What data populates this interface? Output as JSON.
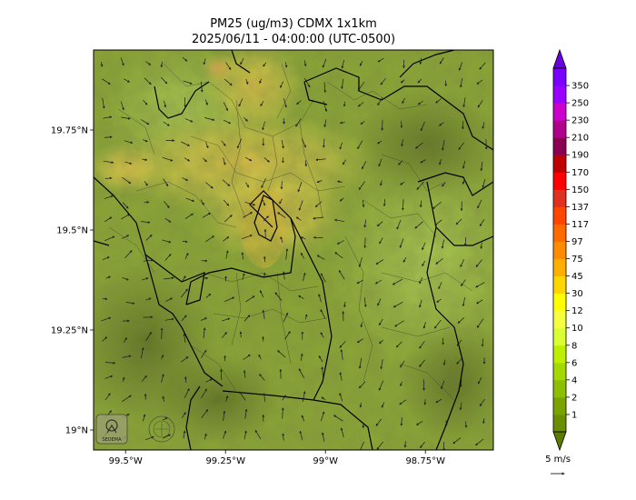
{
  "title": {
    "line1": "PM25 (ug/m3) CDMX 1x1km",
    "line2": "2025/06/11 - 04:00:00 (UTC-0500)"
  },
  "map": {
    "lon_range": [
      -99.58,
      -98.58
    ],
    "lat_range": [
      18.95,
      19.95
    ],
    "lat_ticks": [
      {
        "value": 19.75,
        "label": "19.75°N"
      },
      {
        "value": 19.5,
        "label": "19.5°N"
      },
      {
        "value": 19.25,
        "label": "19.25°N"
      },
      {
        "value": 19.0,
        "label": "19°N"
      }
    ],
    "lon_ticks": [
      {
        "value": -99.5,
        "label": "99.5°W"
      },
      {
        "value": -99.25,
        "label": "99.25°W"
      },
      {
        "value": -99.0,
        "label": "99°W"
      },
      {
        "value": -98.75,
        "label": "98.75°W"
      }
    ],
    "logo_text": "SEDEMA"
  },
  "colorbar": {
    "levels": [
      "1",
      "2",
      "4",
      "6",
      "8",
      "10",
      "12",
      "30",
      "45",
      "75",
      "97",
      "117",
      "137",
      "150",
      "170",
      "190",
      "210",
      "230",
      "250",
      "350"
    ],
    "colors": [
      "#6b8e00",
      "#7ba300",
      "#8cbf00",
      "#a3d900",
      "#bfef00",
      "#d9ff33",
      "#f5ff40",
      "#ffff00",
      "#ffd700",
      "#ffb000",
      "#ff8c00",
      "#ff6a00",
      "#ff4500",
      "#e03020",
      "#ff0000",
      "#c00000",
      "#8b0050",
      "#b0008b",
      "#cc00cc",
      "#9900ff",
      "#7a00ff"
    ]
  },
  "wind_legend": {
    "label": "5 m/s"
  }
}
